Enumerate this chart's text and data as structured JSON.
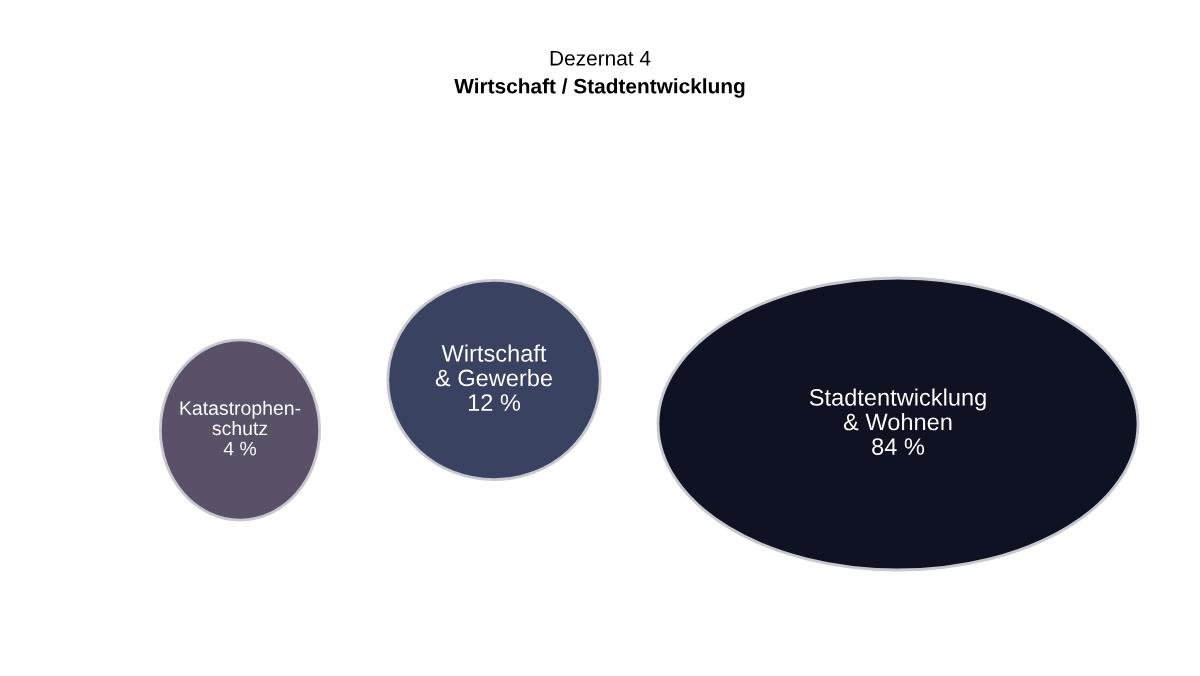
{
  "chart_data": {
    "type": "other",
    "title": "Dezernat 4",
    "subtitle": "Wirtschaft / Stadtentwicklung",
    "categories": [
      "Katastrophen-\nschutz",
      "Wirtschaft\n& Gewerbe",
      "Stadtentwicklung\n& Wohnen"
    ],
    "values": [
      4,
      12,
      84
    ],
    "value_labels": [
      "4 %",
      "12 %",
      "84 %"
    ],
    "colors": [
      "#5a5068",
      "#3a4262",
      "#0f1222"
    ]
  }
}
